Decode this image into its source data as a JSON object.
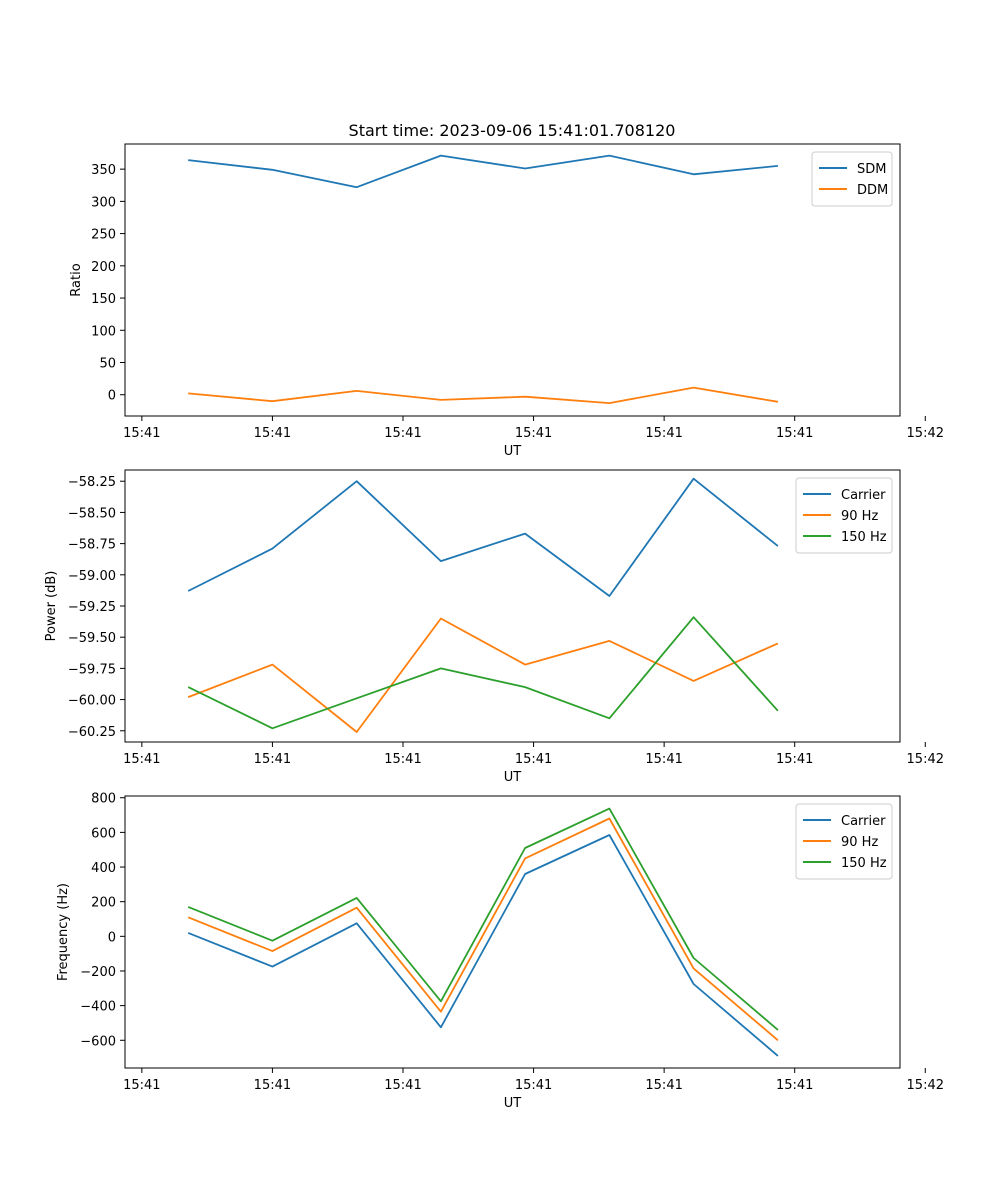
{
  "figure": {
    "title": "Start time: 2023-09-06 15:41:01.708120"
  },
  "colors": {
    "blue": "#1f77b4",
    "orange": "#ff7f0e",
    "green": "#2ca02c"
  },
  "chart_data": [
    {
      "type": "line",
      "title": "Start time: 2023-09-06 15:41:01.708120",
      "xlabel": "UT",
      "ylabel": "Ratio",
      "x": [
        1,
        2,
        3,
        4,
        5,
        6,
        7,
        8
      ],
      "xlim": [
        0.25,
        9.45
      ],
      "ylim": [
        -33,
        389
      ],
      "x_ticks": [
        0.45,
        2.0,
        3.55,
        5.1,
        6.65,
        8.2,
        9.75
      ],
      "x_tick_labels": [
        "15:41",
        "15:41",
        "15:41",
        "15:41",
        "15:41",
        "15:41",
        "15:42"
      ],
      "y_ticks": [
        0,
        50,
        100,
        150,
        200,
        250,
        300,
        350
      ],
      "y_tick_labels": [
        "0",
        "50",
        "100",
        "150",
        "200",
        "250",
        "300",
        "350"
      ],
      "legend": "top-right",
      "series": [
        {
          "name": "SDM",
          "color": "#1f77b4",
          "values": [
            364,
            349,
            322,
            371,
            351,
            371,
            342,
            355
          ]
        },
        {
          "name": "DDM",
          "color": "#ff7f0e",
          "values": [
            2,
            -10,
            6,
            -8,
            -3,
            -13,
            11,
            -11
          ]
        }
      ]
    },
    {
      "type": "line",
      "title": "",
      "xlabel": "UT",
      "ylabel": "Power (dB)",
      "x": [
        1,
        2,
        3,
        4,
        5,
        6,
        7,
        8
      ],
      "xlim": [
        0.25,
        9.45
      ],
      "ylim": [
        -60.34,
        -58.16
      ],
      "x_ticks": [
        0.45,
        2.0,
        3.55,
        5.1,
        6.65,
        8.2,
        9.75
      ],
      "x_tick_labels": [
        "15:41",
        "15:41",
        "15:41",
        "15:41",
        "15:41",
        "15:41",
        "15:42"
      ],
      "y_ticks": [
        -60.25,
        -60.0,
        -59.75,
        -59.5,
        -59.25,
        -59.0,
        -58.75,
        -58.5,
        -58.25
      ],
      "y_tick_labels": [
        "−60.25",
        "−60.00",
        "−59.75",
        "−59.50",
        "−59.25",
        "−59.00",
        "−58.75",
        "−58.50",
        "−58.25"
      ],
      "legend": "top-right",
      "series": [
        {
          "name": "Carrier",
          "color": "#1f77b4",
          "values": [
            -59.13,
            -58.79,
            -58.25,
            -58.89,
            -58.67,
            -59.17,
            -58.23,
            -58.77
          ]
        },
        {
          "name": "90 Hz",
          "color": "#ff7f0e",
          "values": [
            -59.98,
            -59.72,
            -60.26,
            -59.35,
            -59.72,
            -59.53,
            -59.85,
            -59.55
          ]
        },
        {
          "name": "150 Hz",
          "color": "#2ca02c",
          "values": [
            -59.9,
            -60.23,
            -59.99,
            -59.75,
            -59.9,
            -60.15,
            -59.34,
            -60.09
          ]
        }
      ]
    },
    {
      "type": "line",
      "title": "",
      "xlabel": "UT",
      "ylabel": "Frequency (Hz)",
      "x": [
        1,
        2,
        3,
        4,
        5,
        6,
        7,
        8
      ],
      "xlim": [
        0.25,
        9.45
      ],
      "ylim": [
        -760,
        810
      ],
      "x_ticks": [
        0.45,
        2.0,
        3.55,
        5.1,
        6.65,
        8.2,
        9.75
      ],
      "x_tick_labels": [
        "15:41",
        "15:41",
        "15:41",
        "15:41",
        "15:41",
        "15:41",
        "15:42"
      ],
      "y_ticks": [
        -600,
        -400,
        -200,
        0,
        200,
        400,
        600,
        800
      ],
      "y_tick_labels": [
        "−600",
        "−400",
        "−200",
        "0",
        "200",
        "400",
        "600",
        "800"
      ],
      "legend": "top-right",
      "series": [
        {
          "name": "Carrier",
          "color": "#1f77b4",
          "values": [
            20,
            -175,
            75,
            -525,
            360,
            585,
            -275,
            -690
          ]
        },
        {
          "name": "90 Hz",
          "color": "#ff7f0e",
          "values": [
            110,
            -85,
            165,
            -435,
            450,
            680,
            -185,
            -600
          ]
        },
        {
          "name": "150 Hz",
          "color": "#2ca02c",
          "values": [
            170,
            -25,
            222,
            -375,
            510,
            737,
            -125,
            -540
          ]
        }
      ]
    }
  ]
}
